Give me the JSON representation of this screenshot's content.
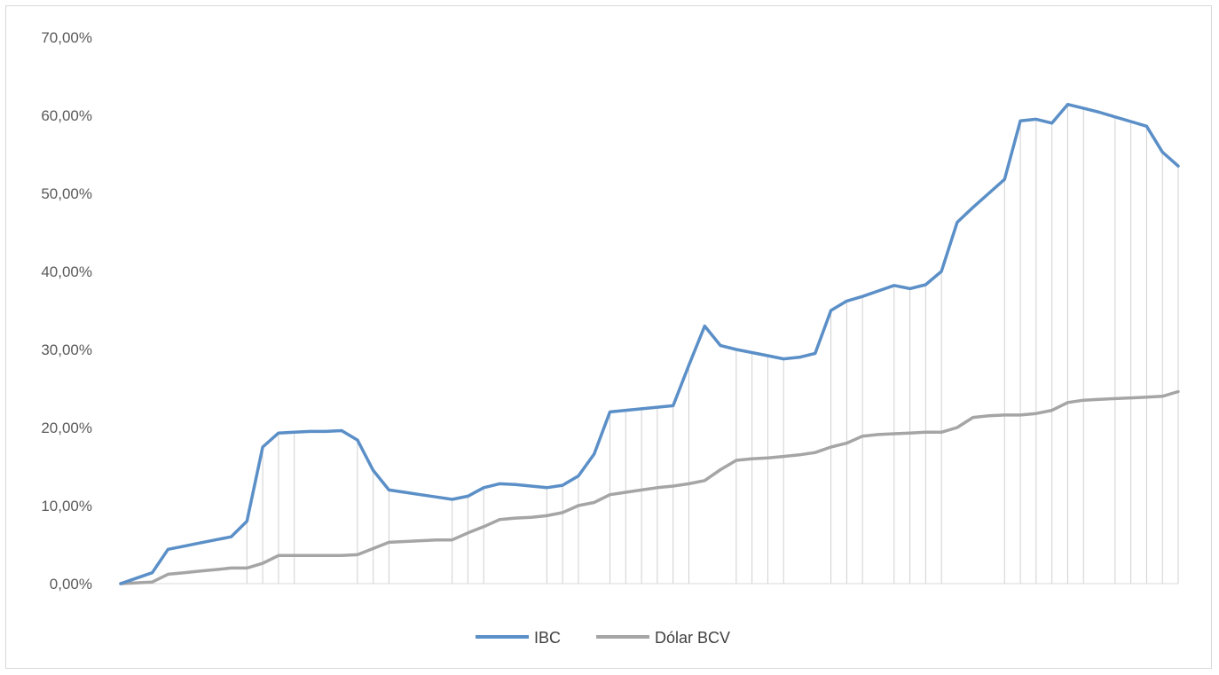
{
  "chart_data": {
    "type": "line",
    "title": "",
    "xlabel": "",
    "ylabel": "",
    "ylim": [
      0,
      0.7
    ],
    "yticks": [
      "0,00%",
      "10,00%",
      "20,00%",
      "30,00%",
      "40,00%",
      "50,00%",
      "60,00%",
      "70,00%"
    ],
    "ytick_values": [
      0,
      0.1,
      0.2,
      0.3,
      0.4,
      0.5,
      0.6,
      0.7
    ],
    "x": [
      0,
      1,
      2,
      3,
      4,
      5,
      6,
      7,
      8,
      9,
      10,
      11,
      12,
      13,
      14,
      15,
      16,
      17,
      18,
      19,
      20,
      21,
      22,
      23,
      24,
      25,
      26,
      27,
      28,
      29,
      30,
      31,
      32,
      33,
      34,
      35,
      36,
      37,
      38,
      39,
      40,
      41,
      42,
      43,
      44,
      45,
      46,
      47,
      48,
      49,
      50,
      51,
      52,
      53,
      54,
      55,
      56,
      57,
      58,
      59,
      60,
      61,
      62,
      63,
      64,
      65,
      66,
      67
    ],
    "drop_lines_x": [
      8,
      9,
      10,
      11,
      15,
      16,
      17,
      21,
      22,
      23,
      27,
      28,
      29,
      31,
      32,
      33,
      34,
      35,
      36,
      39,
      40,
      41,
      42,
      45,
      46,
      47,
      49,
      50,
      51,
      52,
      56,
      57,
      58,
      59,
      60,
      61,
      63,
      64,
      65,
      66,
      67
    ],
    "grid": false,
    "legend_position": "bottom",
    "series": [
      {
        "name": "IBC",
        "color": "#5b8fc7",
        "values": [
          0.0,
          0.007,
          0.014,
          0.044,
          0.048,
          0.052,
          0.056,
          0.06,
          0.08,
          0.175,
          0.193,
          0.194,
          0.195,
          0.195,
          0.196,
          0.184,
          0.145,
          0.12,
          0.117,
          0.114,
          0.111,
          0.108,
          0.112,
          0.123,
          0.128,
          0.127,
          0.125,
          0.123,
          0.126,
          0.138,
          0.166,
          0.22,
          0.222,
          0.224,
          0.226,
          0.228,
          0.28,
          0.33,
          0.305,
          0.3,
          0.296,
          0.292,
          0.288,
          0.29,
          0.295,
          0.35,
          0.362,
          0.368,
          0.375,
          0.382,
          0.378,
          0.383,
          0.4,
          0.463,
          0.482,
          0.5,
          0.518,
          0.593,
          0.595,
          0.59,
          0.614,
          0.609,
          0.604,
          0.598,
          0.592,
          0.586,
          0.553,
          0.535
        ]
      },
      {
        "name": "Dólar BCV",
        "color": "#a5a5a5",
        "values": [
          0.0,
          0.001,
          0.002,
          0.012,
          0.014,
          0.016,
          0.018,
          0.02,
          0.02,
          0.026,
          0.036,
          0.036,
          0.036,
          0.036,
          0.036,
          0.037,
          0.045,
          0.053,
          0.054,
          0.055,
          0.056,
          0.056,
          0.065,
          0.073,
          0.082,
          0.084,
          0.085,
          0.087,
          0.091,
          0.1,
          0.104,
          0.114,
          0.117,
          0.12,
          0.123,
          0.125,
          0.128,
          0.132,
          0.146,
          0.158,
          0.16,
          0.161,
          0.163,
          0.165,
          0.168,
          0.175,
          0.18,
          0.189,
          0.191,
          0.192,
          0.193,
          0.194,
          0.194,
          0.2,
          0.213,
          0.215,
          0.216,
          0.216,
          0.218,
          0.222,
          0.232,
          0.235,
          0.236,
          0.237,
          0.238,
          0.239,
          0.24,
          0.246
        ]
      }
    ]
  }
}
